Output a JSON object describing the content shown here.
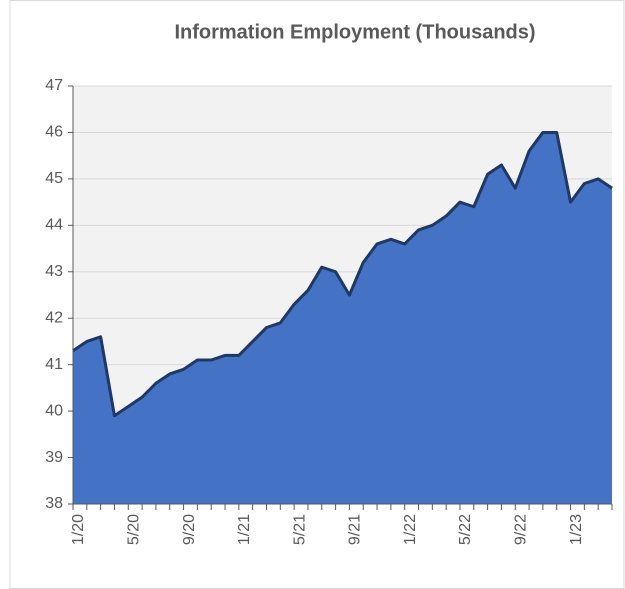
{
  "chart_data": {
    "type": "area",
    "title": "Information Employment (Thousands)",
    "categories": [
      "1/20",
      null,
      null,
      null,
      "5/20",
      null,
      null,
      null,
      "9/20",
      null,
      null,
      null,
      "1/21",
      null,
      null,
      null,
      "5/21",
      null,
      null,
      null,
      "9/21",
      null,
      null,
      null,
      "1/22",
      null,
      null,
      null,
      "5/22",
      null,
      null,
      null,
      "9/22",
      null,
      null,
      null,
      "1/23",
      null,
      null,
      null
    ],
    "values": [
      41.3,
      41.5,
      41.6,
      39.9,
      40.1,
      40.3,
      40.6,
      40.8,
      40.9,
      41.1,
      41.1,
      41.2,
      41.2,
      41.5,
      41.8,
      41.9,
      42.3,
      42.6,
      43.1,
      43.0,
      42.5,
      43.2,
      43.6,
      43.7,
      43.6,
      43.9,
      44.0,
      44.2,
      44.5,
      44.4,
      45.1,
      45.3,
      44.8,
      45.6,
      46.0,
      46.0,
      44.5,
      44.9,
      45.0,
      44.8
    ],
    "color": "#4472c4",
    "line_color": "#1f3864",
    "ylim": [
      38,
      47
    ],
    "yticks": [
      38,
      39,
      40,
      41,
      42,
      43,
      44,
      45,
      46,
      47
    ],
    "grid": true
  }
}
